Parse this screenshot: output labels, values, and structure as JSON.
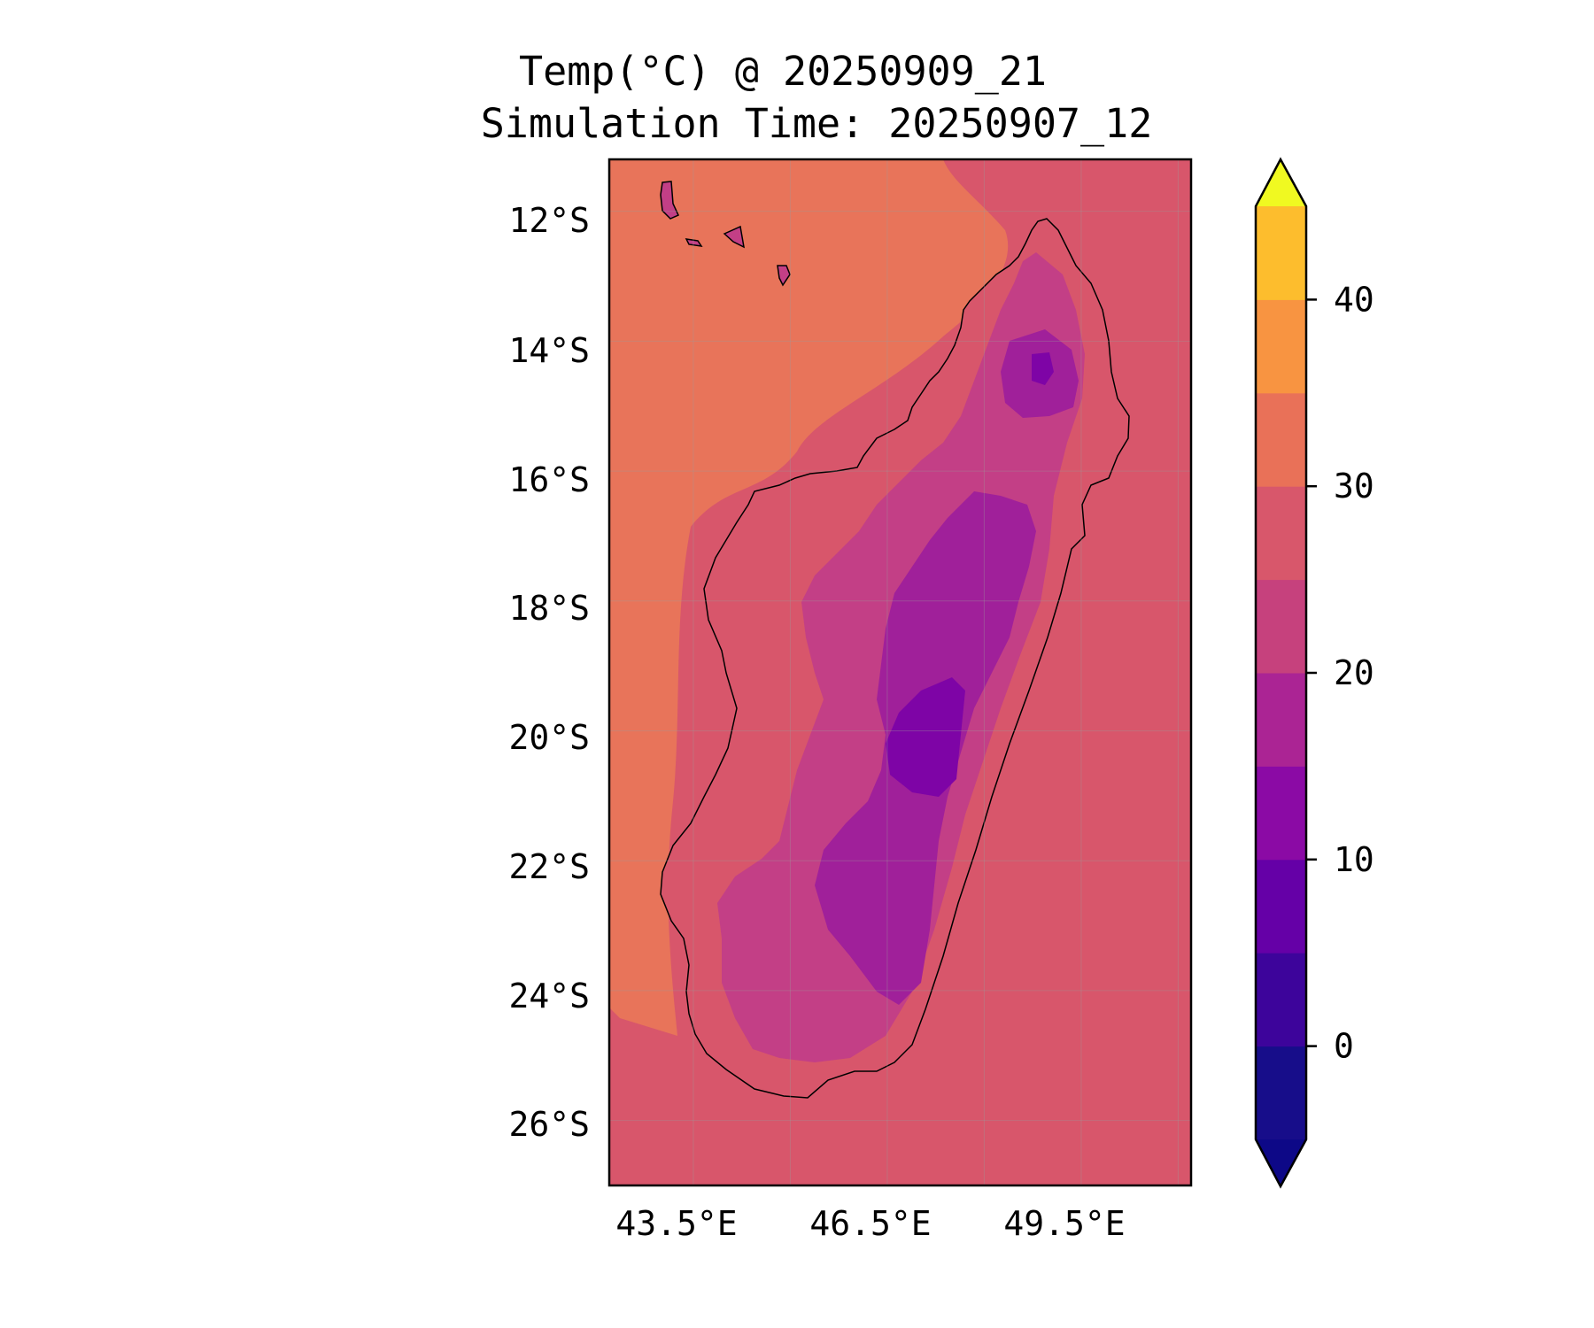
{
  "title": {
    "line1": "Temp(°C) @ 20250909_21",
    "line2": "Simulation Time: 20250907_12"
  },
  "map": {
    "region": "Madagascar",
    "lon_range": [
      42.2,
      51.2
    ],
    "lat_range": [
      -27.0,
      -11.2
    ],
    "lat_ticks": [
      "12°S",
      "14°S",
      "16°S",
      "18°S",
      "20°S",
      "22°S",
      "24°S",
      "26°S"
    ],
    "lon_ticks": [
      "43.5°E",
      "46.5°E",
      "49.5°E"
    ],
    "gridlines": true
  },
  "colorbar": {
    "levels": [
      -5,
      0,
      5,
      10,
      15,
      20,
      25,
      30,
      35,
      40,
      45
    ],
    "colors": [
      "#170d8a",
      "#3d049b",
      "#6500a7",
      "#8b0aa5",
      "#ab2494",
      "#c6417d",
      "#d8576b",
      "#e97158",
      "#f89441",
      "#fdbd2d",
      "#f2e325"
    ],
    "under_color": "#0d0887",
    "over_color": "#f0f921",
    "tick_labels": [
      "0",
      "10",
      "20",
      "30",
      "40"
    ],
    "tick_values": [
      0,
      10,
      20,
      30,
      40
    ],
    "extend": "both"
  },
  "field_colors": {
    "ocean_east": "#d8566b",
    "ocean_west": "#e8745a",
    "warm_patch": "#f08a48",
    "coast_land": "#d8566b",
    "highland_15_20": "#c33f86",
    "highland_10_15": "#a0209a",
    "highland_5_10": "#7e04a6",
    "coastline": "#000000"
  }
}
